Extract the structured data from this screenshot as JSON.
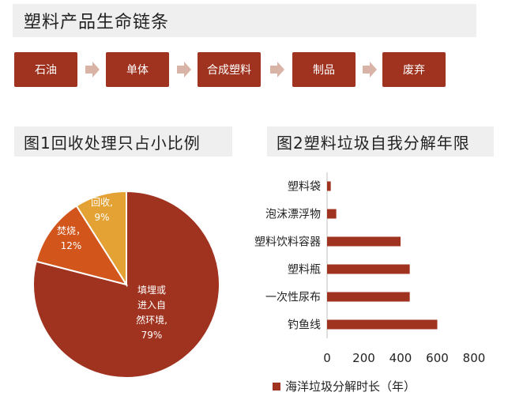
{
  "header": {
    "title": "塑料产品生命链条"
  },
  "flow": {
    "steps": [
      "石油",
      "单体",
      "合成塑料",
      "制品",
      "废弃"
    ],
    "box_color": "#a0331f",
    "arrow_color": "#d9b3a6"
  },
  "figure1": {
    "title": "图1回收处理只占小比例",
    "labels": [
      {
        "line1": "填埋或",
        "line2": "进入自",
        "line3": "然环境,",
        "line4": "79%"
      },
      {
        "line1": "焚烧，",
        "line2": "12%"
      },
      {
        "line1": "回收,",
        "line2": "9%"
      }
    ]
  },
  "figure2": {
    "title": "图2塑料垃圾自我分解年限",
    "legend": "海洋垃圾分解时长（年）"
  },
  "chart_data": [
    {
      "type": "pie",
      "title": "图1回收处理只占小比例",
      "categories": [
        "填埋或进入自然环境",
        "焚烧",
        "回收"
      ],
      "values": [
        79,
        12,
        9
      ],
      "colors": [
        "#a0331f",
        "#d2551c",
        "#e3a233"
      ]
    },
    {
      "type": "bar",
      "orientation": "horizontal",
      "title": "图2塑料垃圾自我分解年限",
      "categories": [
        "塑料袋",
        "泡沫漂浮物",
        "塑料饮料容器",
        "塑料瓶",
        "一次性尿布",
        "钓鱼线"
      ],
      "series": [
        {
          "name": "海洋垃圾分解时长（年）",
          "values": [
            20,
            50,
            400,
            450,
            450,
            600
          ]
        }
      ],
      "xlim": [
        0,
        800
      ],
      "xticks": [
        "0",
        "200",
        "400",
        "600",
        "800"
      ],
      "color": "#a0331f",
      "legend_position": "bottom"
    }
  ]
}
